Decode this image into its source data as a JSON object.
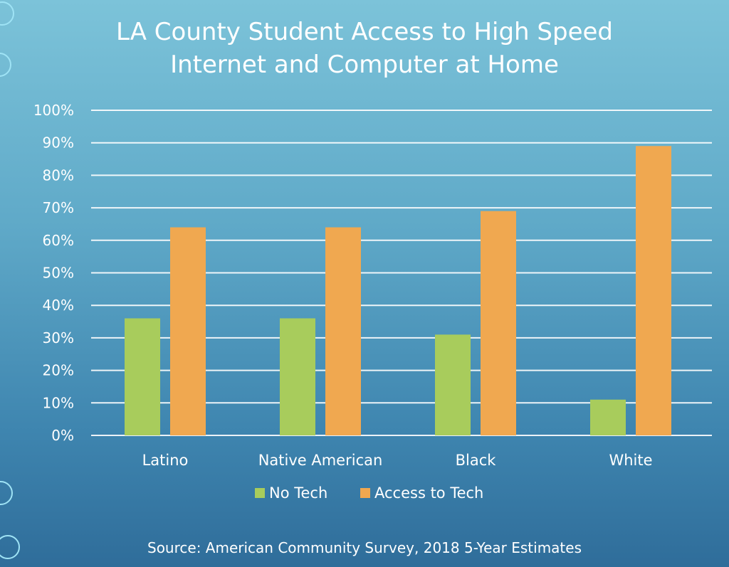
{
  "chart_data": {
    "type": "bar",
    "title_line1": "LA County Student Access to High Speed",
    "title_line2": "Internet and Computer at Home",
    "categories": [
      "Latino",
      "Native American",
      "Black",
      "White"
    ],
    "series": [
      {
        "name": "No Tech",
        "values": [
          36,
          36,
          31,
          11
        ],
        "color": "#a8cc5c"
      },
      {
        "name": "Access to Tech",
        "values": [
          64,
          64,
          69,
          89
        ],
        "color": "#f0a850"
      }
    ],
    "ylim": [
      0,
      100
    ],
    "yticks": [
      "0%",
      "10%",
      "20%",
      "30%",
      "40%",
      "50%",
      "60%",
      "70%",
      "80%",
      "90%",
      "100%"
    ],
    "grid": true,
    "legend_position": "bottom"
  },
  "source": "Source: American Community Survey, 2018 5-Year Estimates"
}
